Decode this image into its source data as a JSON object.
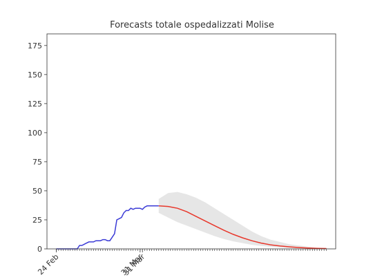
{
  "chart_data": {
    "type": "line",
    "title": "Forecasts totale ospedalizzati Molise",
    "xlabel": "",
    "ylabel": "",
    "ylim": [
      0,
      185
    ],
    "yticks": [
      0,
      25,
      50,
      75,
      100,
      125,
      150,
      175
    ],
    "x_tick_labels": [
      "24 Feb",
      "31 Mar",
      "31 Mar"
    ],
    "grid": false,
    "legend": "none",
    "colors": {
      "observed": "#3a3ad6",
      "forecast": "#e8372b",
      "band": "#e6e6e6",
      "axis": "#333333"
    },
    "series": [
      {
        "role": "observed",
        "x_day": [
          0,
          1,
          2,
          3,
          4,
          5,
          6,
          7,
          8,
          9,
          10,
          11,
          12,
          13,
          14,
          15,
          16,
          17,
          18,
          19,
          20,
          21,
          22,
          23,
          24,
          25,
          26,
          27,
          28,
          29,
          30,
          31,
          32,
          33,
          34,
          35,
          36,
          37,
          38,
          39,
          40,
          41,
          42,
          43,
          44
        ],
        "values": [
          0,
          0,
          0,
          0,
          0,
          0,
          0,
          0,
          0,
          0,
          3,
          3,
          4,
          5,
          6,
          6,
          6,
          7,
          7,
          7,
          8,
          8,
          7,
          7,
          10,
          13,
          25,
          26,
          27,
          31,
          33,
          33,
          35,
          34,
          35,
          35,
          35,
          34,
          36,
          37,
          37,
          37,
          37,
          37,
          37
        ]
      },
      {
        "role": "forecast",
        "x_day": [
          44,
          48,
          52,
          56,
          60,
          64,
          68,
          72,
          76,
          80,
          84,
          88,
          92,
          96,
          100,
          104,
          108,
          112,
          116
        ],
        "values": [
          37,
          36.5,
          35,
          32,
          28,
          24,
          20,
          16,
          12.5,
          9.5,
          7,
          5,
          3.5,
          2.5,
          1.8,
          1.2,
          0.8,
          0.5,
          0.3
        ]
      },
      {
        "role": "confidence-band",
        "x_day": [
          44,
          48,
          52,
          56,
          60,
          64,
          68,
          72,
          76,
          80,
          84,
          88,
          92,
          96,
          100,
          104,
          108,
          112,
          116
        ],
        "upper": [
          43,
          48,
          49,
          47,
          44,
          40,
          35,
          30,
          25,
          20,
          15,
          11,
          8,
          6,
          4,
          3,
          2,
          1,
          0.8
        ],
        "lower": [
          31,
          27,
          23,
          20,
          17,
          14,
          11,
          8.5,
          6.5,
          5,
          3.5,
          2.5,
          1.8,
          1.2,
          0.8,
          0.5,
          0.3,
          0.2,
          0.1
        ]
      }
    ]
  }
}
